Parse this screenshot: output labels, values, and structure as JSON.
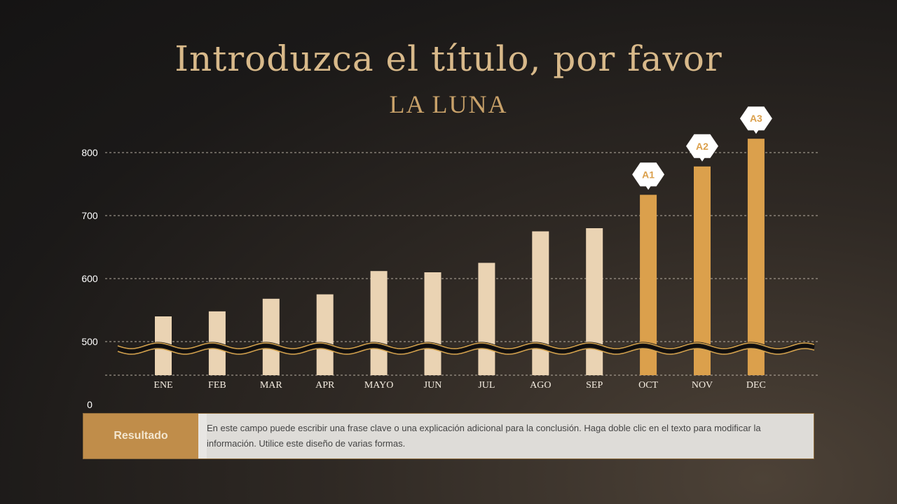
{
  "title": "Introduzca el título, por favor",
  "subtitle": "LA LUNA",
  "colors": {
    "bar_normal": "#ead3b3",
    "bar_highlight": "#dba04c",
    "grid": "#cfc6b8",
    "axis_text": "#ffffff",
    "title": "#d8b98a",
    "result_label_bg": "#c08d4a"
  },
  "chart_data": {
    "type": "bar",
    "categories": [
      "ENE",
      "FEB",
      "MAR",
      "APR",
      "MAYO",
      "JUN",
      "JUL",
      "AGO",
      "SEP",
      "OCT",
      "NOV",
      "DEC"
    ],
    "values": [
      540,
      548,
      568,
      575,
      612,
      610,
      625,
      675,
      680,
      733,
      778,
      822
    ],
    "highlighted": [
      false,
      false,
      false,
      false,
      false,
      false,
      false,
      false,
      false,
      true,
      true,
      true
    ],
    "annotations": [
      {
        "category": "OCT",
        "label": "A1"
      },
      {
        "category": "NOV",
        "label": "A2"
      },
      {
        "category": "DEC",
        "label": "A3"
      }
    ],
    "y_ticks": [
      0,
      500,
      600,
      700,
      800
    ],
    "axis_break": true,
    "grid": true,
    "grid_style": "dashed"
  },
  "result": {
    "label": "Resultado",
    "text": "En este campo puede escribir una frase clave o una explicación adicional para la conclusión. Haga doble clic en el texto para modificar la información. Utilice este diseño de varias formas."
  }
}
